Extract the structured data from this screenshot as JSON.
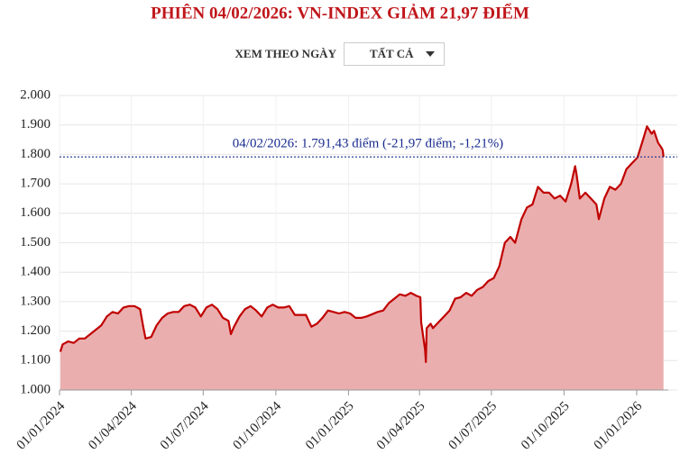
{
  "chart_data": {
    "type": "area",
    "title": "PHIÊN 04/02/2026: VN-INDEX GIẢM 21,97 ĐIỂM",
    "filter_label": "XEM THEO NGÀY",
    "filter_value": "TẤT CẢ",
    "annotation": "04/02/2026: 1.791,43 điểm (-21,97 điểm; -1,21%)",
    "reference_value": 1791.43,
    "line_color": "#c00000",
    "fill_color": "#ebaeae",
    "reference_color": "#1a2d8f",
    "grid": true,
    "xlim": [
      "2024-01-01",
      "2026-02-10"
    ],
    "xticks": [
      {
        "value": "2024-01-01",
        "label": "01/01/2024"
      },
      {
        "value": "2024-04-01",
        "label": "01/04/2024"
      },
      {
        "value": "2024-07-01",
        "label": "01/07/2024"
      },
      {
        "value": "2024-10-01",
        "label": "01/10/2024"
      },
      {
        "value": "2025-01-01",
        "label": "01/01/2025"
      },
      {
        "value": "2025-04-01",
        "label": "01/04/2025"
      },
      {
        "value": "2025-07-01",
        "label": "01/07/2025"
      },
      {
        "value": "2025-10-01",
        "label": "01/10/2025"
      },
      {
        "value": "2026-01-01",
        "label": "01/01/2026"
      }
    ],
    "ylim": [
      1000,
      2000
    ],
    "yticks": [
      {
        "value": 1000,
        "label": "1.000"
      },
      {
        "value": 1100,
        "label": "1.100"
      },
      {
        "value": 1200,
        "label": "1.200"
      },
      {
        "value": 1300,
        "label": "1.300"
      },
      {
        "value": 1400,
        "label": "1.400"
      },
      {
        "value": 1500,
        "label": "1.500"
      },
      {
        "value": 1600,
        "label": "1.600"
      },
      {
        "value": 1700,
        "label": "1.700"
      },
      {
        "value": 1800,
        "label": "1.800"
      },
      {
        "value": 1900,
        "label": "1.900"
      },
      {
        "value": 2000,
        "label": "2.000"
      }
    ],
    "x": [
      "2024-01-02",
      "2024-01-05",
      "2024-01-12",
      "2024-01-19",
      "2024-01-26",
      "2024-02-02",
      "2024-02-16",
      "2024-02-23",
      "2024-03-01",
      "2024-03-08",
      "2024-03-15",
      "2024-03-22",
      "2024-03-29",
      "2024-04-05",
      "2024-04-12",
      "2024-04-16",
      "2024-04-19",
      "2024-04-26",
      "2024-05-03",
      "2024-05-10",
      "2024-05-17",
      "2024-05-24",
      "2024-05-31",
      "2024-06-07",
      "2024-06-14",
      "2024-06-21",
      "2024-06-28",
      "2024-07-05",
      "2024-07-12",
      "2024-07-19",
      "2024-07-26",
      "2024-08-02",
      "2024-08-05",
      "2024-08-09",
      "2024-08-16",
      "2024-08-23",
      "2024-08-30",
      "2024-09-06",
      "2024-09-13",
      "2024-09-20",
      "2024-09-27",
      "2024-10-04",
      "2024-10-11",
      "2024-10-18",
      "2024-10-25",
      "2024-11-01",
      "2024-11-08",
      "2024-11-15",
      "2024-11-22",
      "2024-11-29",
      "2024-12-06",
      "2024-12-13",
      "2024-12-20",
      "2024-12-27",
      "2025-01-03",
      "2025-01-10",
      "2025-01-17",
      "2025-01-24",
      "2025-02-07",
      "2025-02-14",
      "2025-02-21",
      "2025-02-28",
      "2025-03-07",
      "2025-03-14",
      "2025-03-21",
      "2025-03-28",
      "2025-04-02",
      "2025-04-03",
      "2025-04-08",
      "2025-04-09",
      "2025-04-10",
      "2025-04-15",
      "2025-04-18",
      "2025-04-25",
      "2025-05-02",
      "2025-05-09",
      "2025-05-16",
      "2025-05-23",
      "2025-05-30",
      "2025-06-06",
      "2025-06-13",
      "2025-06-20",
      "2025-06-27",
      "2025-07-04",
      "2025-07-11",
      "2025-07-18",
      "2025-07-25",
      "2025-07-31",
      "2025-08-08",
      "2025-08-15",
      "2025-08-22",
      "2025-08-29",
      "2025-09-05",
      "2025-09-12",
      "2025-09-19",
      "2025-09-26",
      "2025-10-03",
      "2025-10-10",
      "2025-10-15",
      "2025-10-17",
      "2025-10-21",
      "2025-10-28",
      "2025-11-04",
      "2025-11-11",
      "2025-11-14",
      "2025-11-21",
      "2025-11-28",
      "2025-12-05",
      "2025-12-12",
      "2025-12-19",
      "2025-12-26",
      "2026-01-02",
      "2026-01-09",
      "2026-01-14",
      "2026-01-20",
      "2026-01-23",
      "2026-01-28",
      "2026-02-02",
      "2026-02-03",
      "2026-02-04"
    ],
    "values": [
      1130,
      1155,
      1165,
      1160,
      1175,
      1175,
      1205,
      1220,
      1250,
      1265,
      1260,
      1280,
      1285,
      1285,
      1275,
      1215,
      1175,
      1180,
      1220,
      1245,
      1260,
      1265,
      1265,
      1285,
      1290,
      1280,
      1250,
      1280,
      1290,
      1275,
      1245,
      1235,
      1190,
      1215,
      1250,
      1275,
      1285,
      1270,
      1250,
      1280,
      1290,
      1280,
      1280,
      1285,
      1255,
      1255,
      1255,
      1215,
      1225,
      1245,
      1270,
      1265,
      1260,
      1265,
      1260,
      1245,
      1245,
      1250,
      1265,
      1270,
      1295,
      1310,
      1325,
      1320,
      1330,
      1320,
      1315,
      1230,
      1135,
      1095,
      1210,
      1225,
      1210,
      1230,
      1250,
      1270,
      1310,
      1315,
      1330,
      1320,
      1340,
      1350,
      1370,
      1380,
      1420,
      1500,
      1520,
      1500,
      1580,
      1620,
      1630,
      1690,
      1670,
      1670,
      1650,
      1660,
      1640,
      1700,
      1760,
      1730,
      1650,
      1670,
      1650,
      1630,
      1580,
      1650,
      1690,
      1680,
      1700,
      1750,
      1770,
      1790,
      1850,
      1895,
      1870,
      1880,
      1840,
      1820,
      1813.4,
      1791.43
    ]
  }
}
